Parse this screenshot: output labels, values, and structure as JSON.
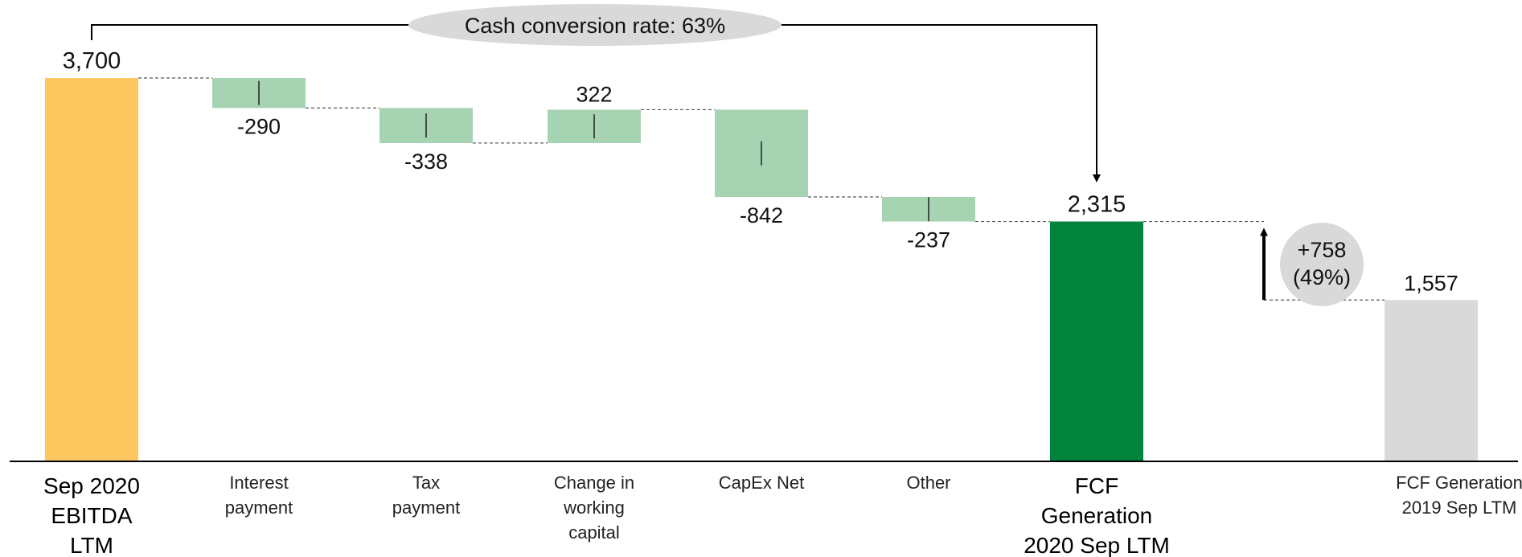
{
  "chart_data": {
    "type": "waterfall",
    "ylim": [
      0,
      3900
    ],
    "colors": {
      "total": "#FDC75F",
      "delta": "#A6D3B2",
      "result": "#00843D",
      "compare": "#D9D9D9",
      "callout": "#D9D9D9"
    },
    "bars": [
      {
        "id": "ebitda",
        "kind": "total",
        "value": 3700,
        "value_label": "3,700",
        "label_lines": [
          "Sep 2020",
          "EBITDA",
          "LTM"
        ],
        "bold": true
      },
      {
        "id": "interest",
        "kind": "delta",
        "value": -290,
        "value_label": "-290",
        "label_lines": [
          "Interest",
          "payment"
        ],
        "bold": false
      },
      {
        "id": "tax",
        "kind": "delta",
        "value": -338,
        "value_label": "-338",
        "label_lines": [
          "Tax",
          "payment"
        ],
        "bold": false
      },
      {
        "id": "wc",
        "kind": "delta",
        "value": 322,
        "value_label": "322",
        "label_lines": [
          "Change in",
          "working",
          "capital"
        ],
        "bold": false
      },
      {
        "id": "capex",
        "kind": "delta",
        "value": -842,
        "value_label": "-842",
        "label_lines": [
          "CapEx Net"
        ],
        "bold": false
      },
      {
        "id": "other",
        "kind": "delta",
        "value": -237,
        "value_label": "-237",
        "label_lines": [
          "Other"
        ],
        "bold": false
      },
      {
        "id": "fcf2020",
        "kind": "result",
        "value": 2315,
        "value_label": "2,315",
        "label_lines": [
          "FCF",
          "Generation",
          "2020 Sep LTM"
        ],
        "bold": true
      },
      {
        "id": "fcf2019",
        "kind": "compare",
        "value": 1557,
        "value_label": "1,557",
        "label_lines": [
          "FCF Generation",
          "2019 Sep LTM"
        ],
        "bold": false
      }
    ],
    "conversion_callout": {
      "text": "Cash conversion rate: 63%"
    },
    "growth_callout": {
      "line1": "+758",
      "line2": "(49%)",
      "delta": 758
    }
  }
}
